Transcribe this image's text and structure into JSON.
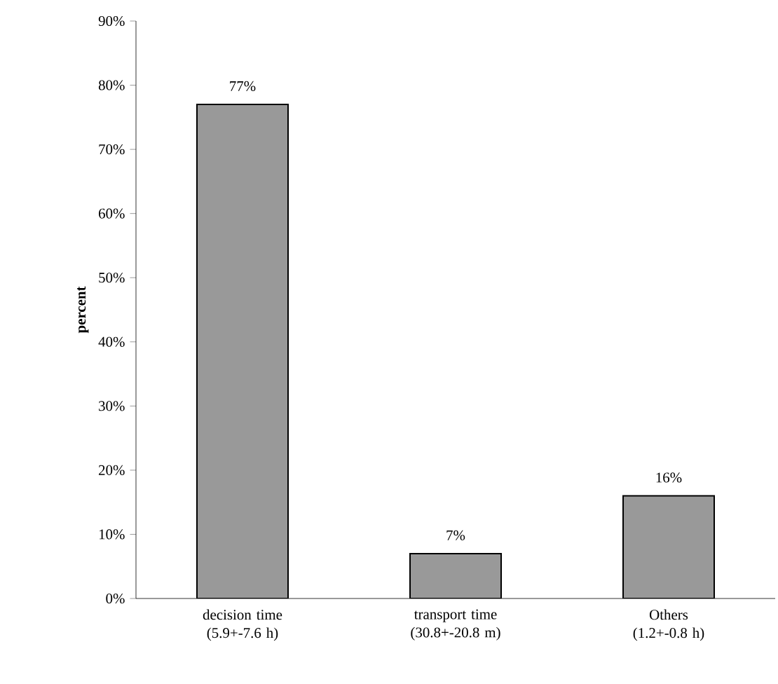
{
  "chart_data": {
    "type": "bar",
    "ylabel": "percent",
    "categories": [
      "decision time (5.9+-7.6 h)",
      "transport time (30.8+-20.8 m)",
      "Others (1.2+-0.8 h)"
    ],
    "values": [
      77,
      7,
      16
    ],
    "color": "#999999",
    "value_labels": [
      "77%",
      "7%",
      "16%"
    ],
    "ylim": [
      0,
      90
    ],
    "yticks": [
      {
        "value": 0,
        "label": "0%"
      },
      {
        "value": 10,
        "label": "10%"
      },
      {
        "value": 20,
        "label": "20%"
      },
      {
        "value": 30,
        "label": "30%"
      },
      {
        "value": 40,
        "label": "40%"
      },
      {
        "value": 50,
        "label": "50%"
      },
      {
        "value": 60,
        "label": "60%"
      },
      {
        "value": 70,
        "label": "70%"
      },
      {
        "value": 80,
        "label": "80%"
      },
      {
        "value": 90,
        "label": "90%"
      }
    ],
    "grid": false
  }
}
